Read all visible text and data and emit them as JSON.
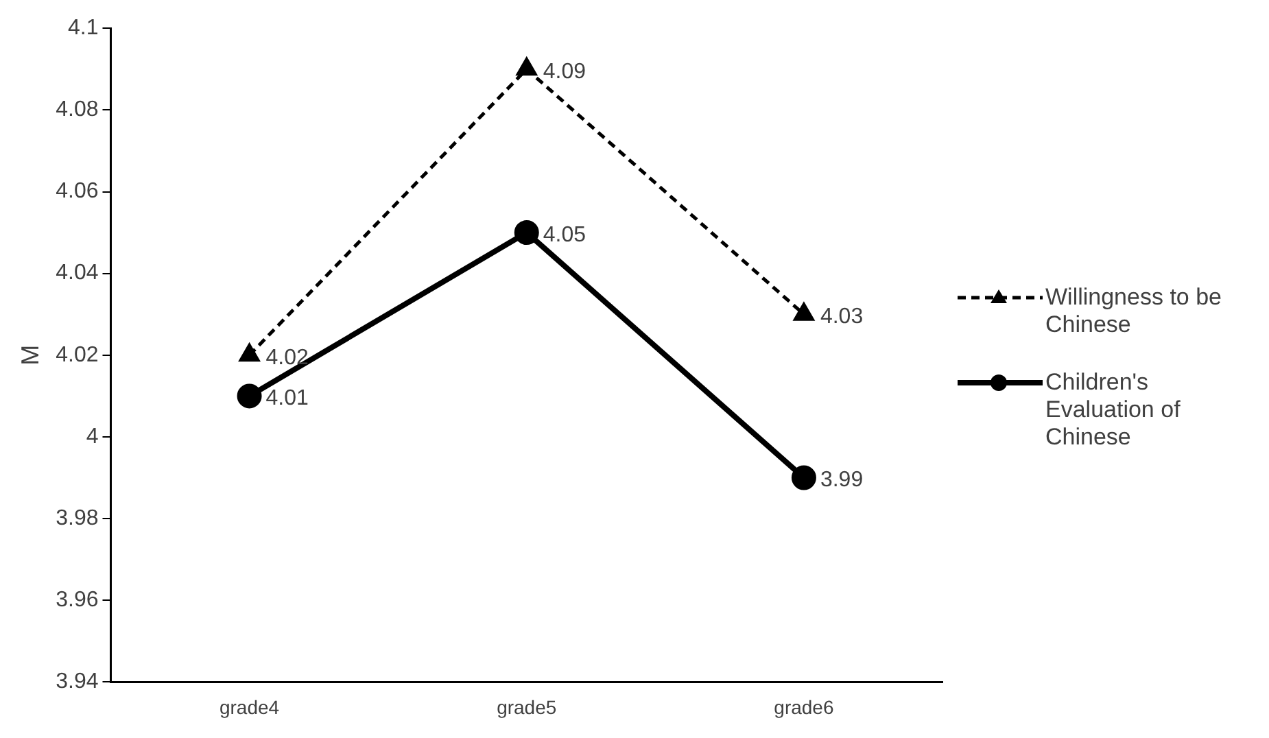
{
  "chart_data": {
    "type": "line",
    "ylabel": "M",
    "categories": [
      "grade4",
      "grade5",
      "grade6"
    ],
    "series": [
      {
        "name": "Willingness to be Chinese",
        "color": "#000000",
        "values": [
          4.02,
          4.09,
          4.03
        ],
        "marker": "triangle",
        "line_style": "dashed"
      },
      {
        "name": "Children's Evaluation of Chinese",
        "color": "#000000",
        "values": [
          4.01,
          4.05,
          3.99
        ],
        "marker": "circle",
        "line_style": "solid"
      }
    ],
    "ylim": [
      3.94,
      4.1
    ],
    "yticks": [
      3.94,
      3.96,
      3.98,
      4,
      4.02,
      4.04,
      4.06,
      4.08,
      4.1
    ],
    "grid": false,
    "legend": "right",
    "data_labels": true
  }
}
